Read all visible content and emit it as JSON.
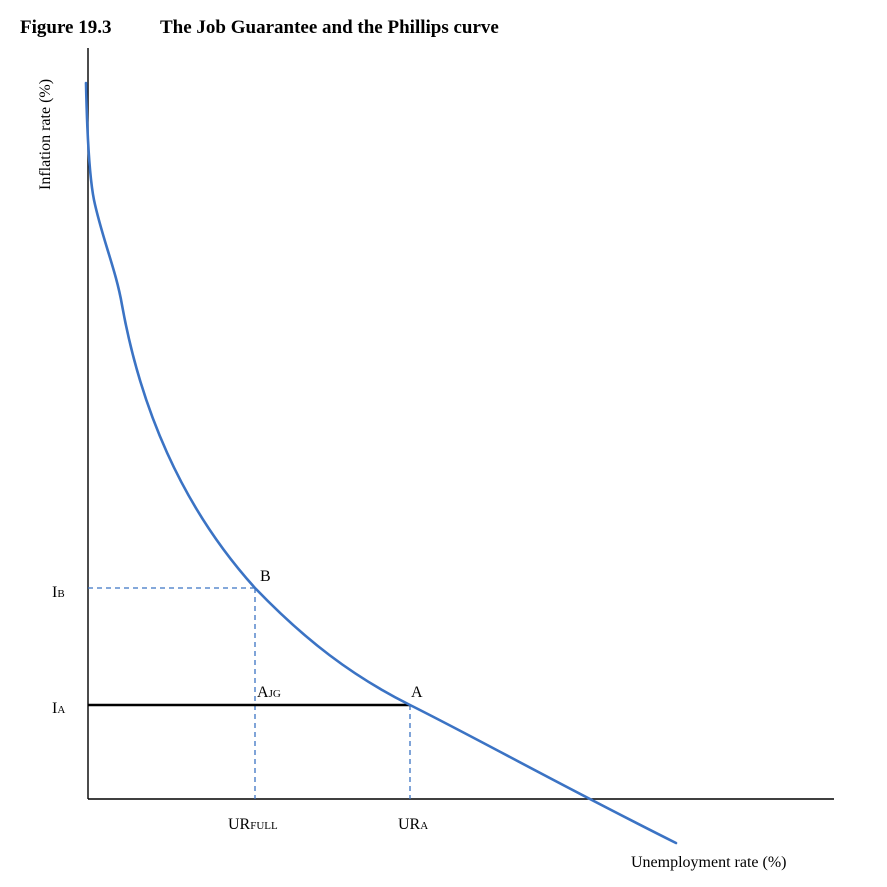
{
  "figure": {
    "number": "Figure 19.3",
    "title": "The Job Guarantee and the Phillips curve"
  },
  "axes": {
    "y_label": "Inflation rate (%)",
    "x_label": "Unemployment rate (%)"
  },
  "y_ticks": [
    {
      "main": "I",
      "sub": "B"
    },
    {
      "main": "I",
      "sub": "A"
    }
  ],
  "x_ticks": [
    {
      "main": "UR",
      "sub": "FULL"
    },
    {
      "main": "UR",
      "sub": "A"
    }
  ],
  "points": {
    "B": {
      "label": "B"
    },
    "A": {
      "label": "A"
    },
    "A_JG": {
      "main": "A",
      "sub": "JG"
    }
  },
  "colors": {
    "curve": "#3b73c4",
    "guides": "#3b73c4",
    "axes": "#000000",
    "jg_line": "#000000"
  }
}
